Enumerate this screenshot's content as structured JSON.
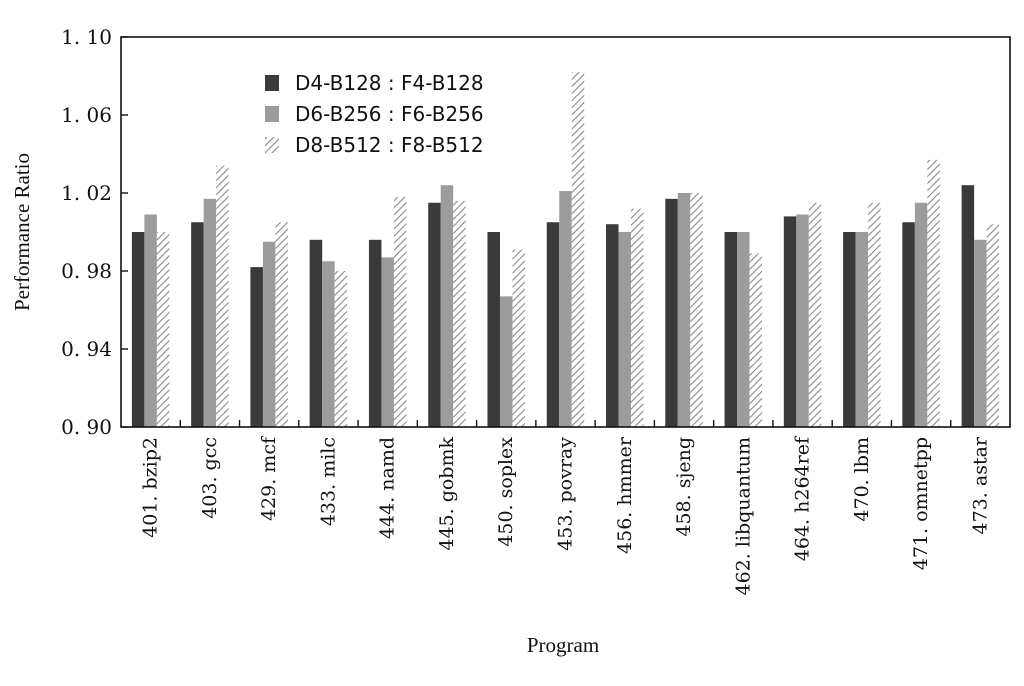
{
  "chart_data": {
    "type": "bar",
    "title": "",
    "xlabel": "Program",
    "ylabel": "Performance Ratio",
    "ylim": [
      0.9,
      1.1
    ],
    "yticks": [
      "0. 90",
      "0. 94",
      "0. 98",
      "1. 02",
      "1. 06",
      "1. 10"
    ],
    "ytick_values": [
      0.9,
      0.94,
      0.98,
      1.02,
      1.06,
      1.1
    ],
    "grid": false,
    "legend_position": "top-left",
    "categories": [
      "401. bzip2",
      "403. gcc",
      "429. mcf",
      "433. milc",
      "444. namd",
      "445. gobmk",
      "450. soplex",
      "453. povray",
      "456. hmmer",
      "458. sjeng",
      "462. libquantum",
      "464. h264ref",
      "470. lbm",
      "471. omnetpp",
      "473. astar"
    ],
    "series": [
      {
        "name": "D4-B128 : F4-B128",
        "color": "#3a3a3a",
        "pattern": "solid",
        "values": [
          1.0,
          1.005,
          0.982,
          0.996,
          0.996,
          1.015,
          1.0,
          1.005,
          1.004,
          1.017,
          1.0,
          1.008,
          1.0,
          1.005,
          1.024
        ]
      },
      {
        "name": "D6-B256 : F6-B256",
        "color": "#9c9c9c",
        "pattern": "solid",
        "values": [
          1.009,
          1.017,
          0.995,
          0.985,
          0.987,
          1.024,
          0.967,
          1.021,
          1.0,
          1.02,
          1.0,
          1.009,
          1.0,
          1.015,
          0.996
        ]
      },
      {
        "name": "D8-B512 : F8-B512",
        "color": "#9a9a9a",
        "pattern": "hatch",
        "values": [
          1.0,
          1.034,
          1.005,
          0.98,
          1.018,
          1.016,
          0.991,
          1.082,
          1.012,
          1.02,
          0.989,
          1.015,
          1.015,
          1.037,
          1.004
        ]
      }
    ]
  }
}
